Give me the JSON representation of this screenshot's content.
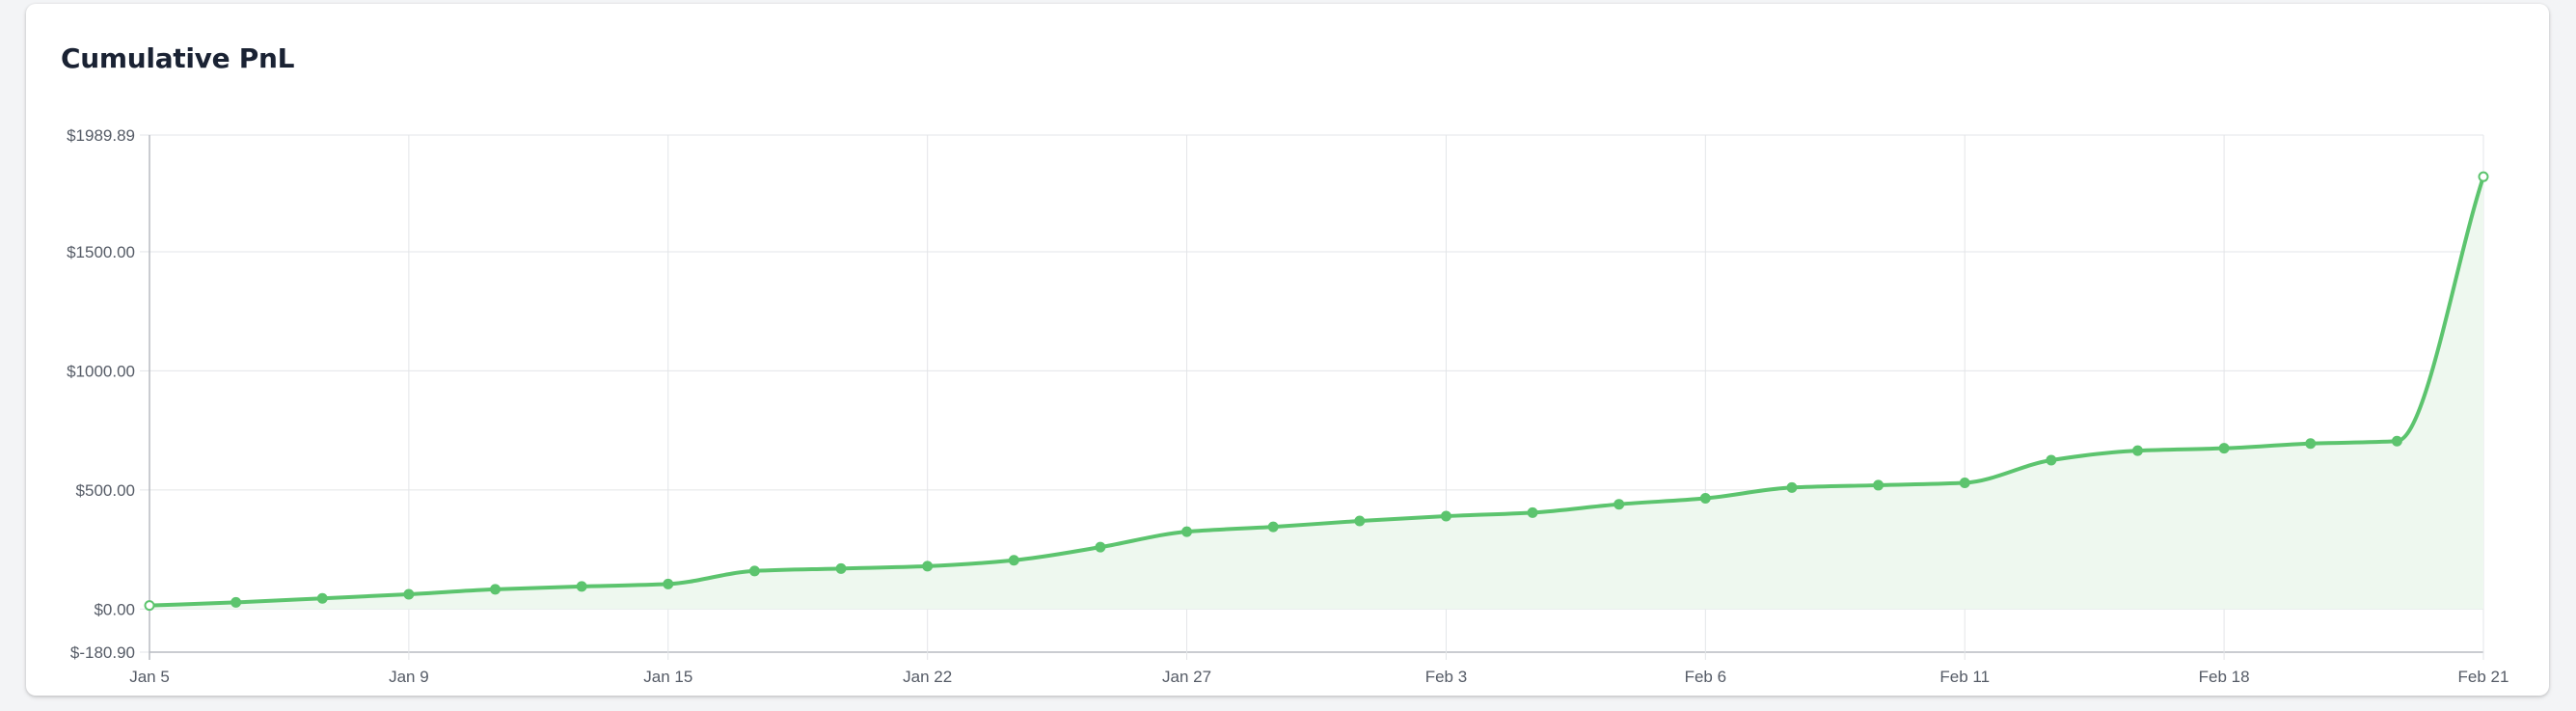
{
  "card": {
    "title": "Cumulative PnL"
  },
  "colors": {
    "line": "#5cc46e",
    "fill": "#eef8ef",
    "grid": "#e3e5e8",
    "axis": "#b8bcc2"
  },
  "chart_data": {
    "type": "area",
    "title": "Cumulative PnL",
    "xlabel": "",
    "ylabel": "",
    "ylim": [
      -180.9,
      1989.89
    ],
    "y_ticks": [
      "$1989.89",
      "$1500.00",
      "$1000.00",
      "$500.00",
      "$0.00",
      "$-180.90"
    ],
    "y_tick_values": [
      1989.89,
      1500,
      1000,
      500,
      0,
      -180.9
    ],
    "x_ticks": [
      "Jan 5",
      "Jan 9",
      "Jan 15",
      "Jan 22",
      "Jan 27",
      "Feb 3",
      "Feb 6",
      "Feb 11",
      "Feb 18",
      "Feb 21"
    ],
    "grid": true,
    "legend": "none",
    "values": [
      15,
      28,
      45,
      62,
      83,
      95,
      105,
      160,
      170,
      180,
      205,
      260,
      325,
      345,
      370,
      390,
      405,
      440,
      465,
      510,
      520,
      530,
      625,
      665,
      675,
      695,
      705,
      1815
    ]
  }
}
